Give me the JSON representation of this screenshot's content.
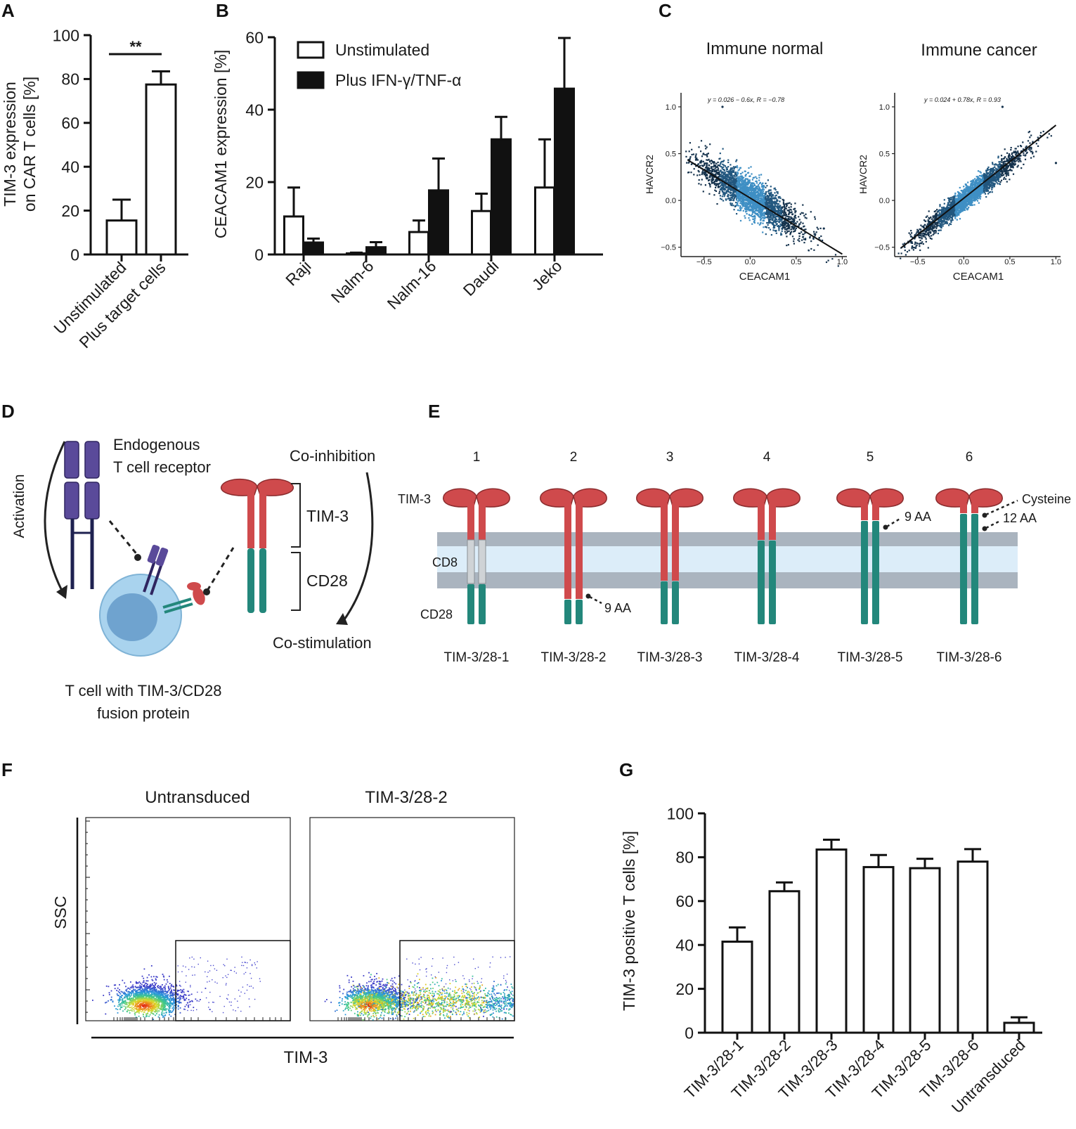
{
  "panels": {
    "A": {
      "letter": "A",
      "chart_data": {
        "type": "bar",
        "categories": [
          "Unstimulated",
          "Plus target cells"
        ],
        "values": [
          15.5,
          77.5
        ],
        "errors": [
          9.5,
          6
        ],
        "ylabel_line1": "TIM-3 expression",
        "ylabel_line2": "on CAR T cells [%]",
        "ylim": [
          0,
          100
        ],
        "yticks": [
          0,
          20,
          40,
          60,
          80,
          100
        ],
        "significance": "**"
      }
    },
    "B": {
      "letter": "B",
      "chart_data": {
        "type": "bar",
        "categories": [
          "Raji",
          "Nalm-6",
          "Nalm-16",
          "Daudi",
          "Jeko"
        ],
        "series": [
          {
            "name": "Unstimulated",
            "color": "#ffffff",
            "values": [
              10.5,
              0.3,
              6.2,
              12,
              18.5
            ],
            "errors": [
              8,
              0.2,
              3.2,
              4.8,
              13.3
            ]
          },
          {
            "name": "Plus IFN-γ/TNF-α",
            "color": "#111111",
            "values": [
              3.3,
              2,
              17.7,
              31.8,
              45.8
            ],
            "errors": [
              1.1,
              1.4,
              8.8,
              6.2,
              14
            ]
          }
        ],
        "ylabel": "CEACAM1 expression [%]",
        "ylim": [
          0,
          60
        ],
        "yticks": [
          0,
          20,
          40,
          60
        ]
      }
    },
    "C": {
      "letter": "C",
      "chart_data": [
        {
          "type": "scatter",
          "title": "Immune normal",
          "equation": "y = 0.026 − 0.6x,  R = −0.78",
          "xlabel": "CEACAM1",
          "ylabel": "HAVCR2",
          "xlim": [
            -0.75,
            1.05
          ],
          "ylim": [
            -0.6,
            1.15
          ],
          "xticks": [
            -0.5,
            0.0,
            0.5,
            1.0
          ],
          "yticks": [
            -0.5,
            0.0,
            0.5,
            1.0
          ],
          "xtick_labels": [
            "−0.5",
            "0.0",
            "0.5",
            "1.0"
          ],
          "ytick_labels": [
            "−0.5",
            "0.0",
            "0.5",
            "1.0"
          ],
          "intercept": 0.026,
          "slope": -0.6,
          "cloud_center": [
            0.0,
            0.05
          ],
          "cloud_spread": [
            0.28,
            0.1
          ],
          "outliers": [
            [
              -0.3,
              1.0
            ],
            [
              0.8,
              -0.3
            ]
          ]
        },
        {
          "type": "scatter",
          "title": "Immune cancer",
          "equation": "y = 0.024 + 0.78x,  R = 0.93",
          "xlabel": "CEACAM1",
          "ylabel": "HAVCR2",
          "xlim": [
            -0.75,
            1.05
          ],
          "ylim": [
            -0.6,
            1.15
          ],
          "xticks": [
            -0.5,
            0.0,
            0.5,
            1.0
          ],
          "yticks": [
            -0.5,
            0.0,
            0.5,
            1.0
          ],
          "xtick_labels": [
            "−0.5",
            "0.0",
            "0.5",
            "1.0"
          ],
          "ytick_labels": [
            "−0.5",
            "0.0",
            "0.5",
            "1.0"
          ],
          "intercept": 0.024,
          "slope": 0.78,
          "cloud_center": [
            0.05,
            0.06
          ],
          "cloud_spread": [
            0.28,
            0.06
          ],
          "outliers": [
            [
              0.42,
              1.0
            ],
            [
              1.0,
              0.4
            ]
          ]
        }
      ]
    },
    "D": {
      "letter": "D",
      "activation": "Activation",
      "tcr_line1": "Endogenous",
      "tcr_line2": "T cell receptor",
      "co_inhibition": "Co-inhibition",
      "co_stimulation": "Co-stimulation",
      "tim3": "TIM-3",
      "cd28": "CD28",
      "caption_line1": "T cell with TIM-3/CD28",
      "caption_line2": "fusion protein"
    },
    "E": {
      "letter": "E",
      "numbers": [
        "1",
        "2",
        "3",
        "4",
        "5",
        "6"
      ],
      "constructs": [
        "TIM-3/28-1",
        "TIM-3/28-2",
        "TIM-3/28-3",
        "TIM-3/28-4",
        "TIM-3/28-5",
        "TIM-3/28-6"
      ],
      "tim3_label": "TIM-3",
      "cd8_label": "CD8",
      "cd28_label": "CD28",
      "aa9_a": "9 AA",
      "aa9_b": "9 AA",
      "aa12": "12 AA",
      "cysteine": "Cysteine"
    },
    "F": {
      "letter": "F",
      "plot1_title": "Untransduced",
      "plot2_title": "TIM-3/28-2",
      "ylabel": "SSC",
      "xlabel": "TIM-3"
    },
    "G": {
      "letter": "G",
      "chart_data": {
        "type": "bar",
        "categories": [
          "TIM-3/28-1",
          "TIM-3/28-2",
          "TIM-3/28-3",
          "TIM-3/28-4",
          "TIM-3/28-5",
          "TIM-3/28-6",
          "Untransduced"
        ],
        "values": [
          41.5,
          64.5,
          83.5,
          75.5,
          75,
          78,
          4.5
        ],
        "errors": [
          6.5,
          4,
          4.5,
          5.5,
          4.3,
          5.7,
          2.5
        ],
        "ylabel": "TIM-3 positive T cells [%]",
        "ylim": [
          0,
          100
        ],
        "yticks": [
          0,
          20,
          40,
          60,
          80,
          100
        ]
      }
    }
  },
  "colors": {
    "tim3_red": "#cf4a4c",
    "cd28_teal": "#23877b",
    "tcr_purple": "#5a4a9a",
    "membrane_gray": "#aab4bf",
    "membrane_light": "#dcedf9",
    "cell_blue": "#a9d3ee",
    "nucleus_blue": "#6fa3cf",
    "scatter_dark": "#1c4a6a"
  }
}
